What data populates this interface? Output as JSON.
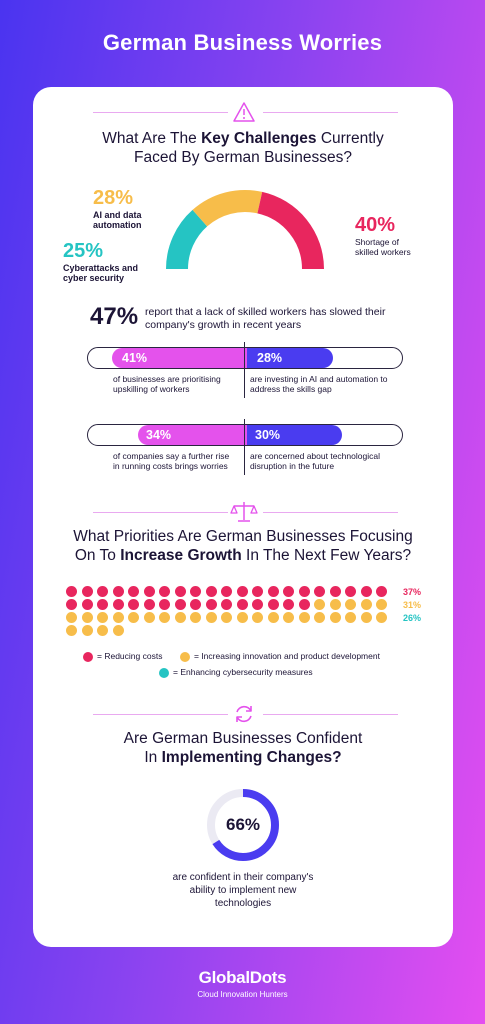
{
  "title": "German Business Worries",
  "colors": {
    "pink": "#e8265e",
    "yellow": "#f7bd4a",
    "teal": "#25c4c3",
    "magenta": "#e452ec",
    "blue": "#4a3cf0"
  },
  "section1": {
    "icon": "warning-icon",
    "heading_pre": "What Are The ",
    "heading_bold": "Key Challenges",
    "heading_post": " Currently",
    "heading_line2": "Faced By German Businesses?",
    "gauge": [
      {
        "value": "28%",
        "label": "AI and data automation",
        "share": 28,
        "color": "#f7bd4a"
      },
      {
        "value": "25%",
        "label": "Cyberattacks and cyber security",
        "share": 25,
        "color": "#25c4c3"
      },
      {
        "value": "40%",
        "label": "Shortage of skilled workers",
        "share": 40,
        "color": "#e8265e"
      }
    ],
    "stat_value": "47%",
    "stat_text": "report that a lack of skilled workers has slowed their company's growth in recent years",
    "bar1": {
      "left_value": "41%",
      "left_text": "of businesses are prioritising upskilling of workers",
      "right_value": "28%",
      "right_text": "are investing in AI and automation to address the skills gap"
    },
    "bar2": {
      "left_value": "34%",
      "left_text": "of companies say a further rise in running costs brings worries",
      "right_value": "30%",
      "right_text": "are concerned about technological disruption in the future"
    }
  },
  "section2": {
    "icon": "scale-icon",
    "heading_line1": "What Priorities Are German Businesses Focusing",
    "heading_pre": "On To ",
    "heading_bold": "Increase Growth",
    "heading_post": " In The Next Few Years?",
    "rows": [
      {
        "value": "37%",
        "color": "#e8265e"
      },
      {
        "value": "31%",
        "color": "#f7bd4a"
      },
      {
        "value": "26%",
        "color": "#25c4c3"
      }
    ],
    "legend": [
      {
        "label": "= Reducing costs",
        "color": "#e8265e"
      },
      {
        "label": "= Increasing innovation and product development",
        "color": "#f7bd4a"
      },
      {
        "label": "= Enhancing cybersecurity measures",
        "color": "#25c4c3"
      }
    ]
  },
  "section3": {
    "icon": "refresh-icon",
    "heading_line1": "Are German Businesses Confident",
    "heading_pre": "In ",
    "heading_bold": "Implementing Changes?",
    "donut_value": "66%",
    "donut_share": 0.66,
    "caption": "are confident in their company's ability to implement new technologies"
  },
  "footer": {
    "logo": "GlobalDots",
    "tagline": "Cloud Innovation Hunters"
  }
}
